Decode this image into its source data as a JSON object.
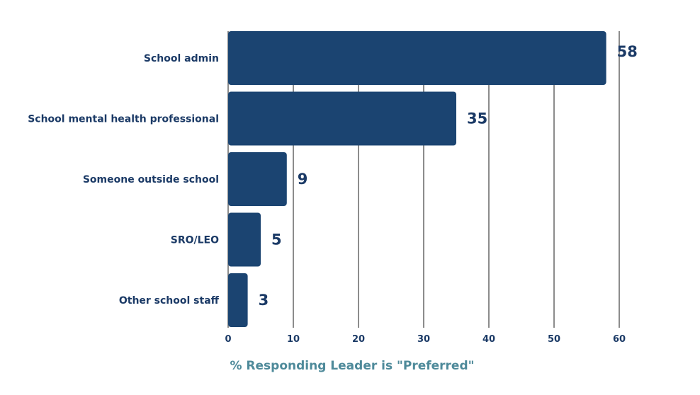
{
  "colors": {
    "bar": "#1b4471",
    "label": "#1b3a66",
    "grid": "#8c8c8c",
    "axis_title": "#4e8a9a"
  },
  "chart_data": {
    "type": "bar",
    "orientation": "horizontal",
    "categories": [
      "School admin",
      "School mental health professional",
      "Someone outside school",
      "SRO/LEO",
      "Other school staff"
    ],
    "values": [
      58,
      35,
      9,
      5,
      3
    ],
    "xlabel": "% Responding Leader is \"Preferred\"",
    "ylabel": "",
    "xlim": [
      0,
      60
    ],
    "xticks": [
      0,
      10,
      20,
      30,
      40,
      50,
      60
    ],
    "grid": "vertical",
    "legend": "none"
  }
}
